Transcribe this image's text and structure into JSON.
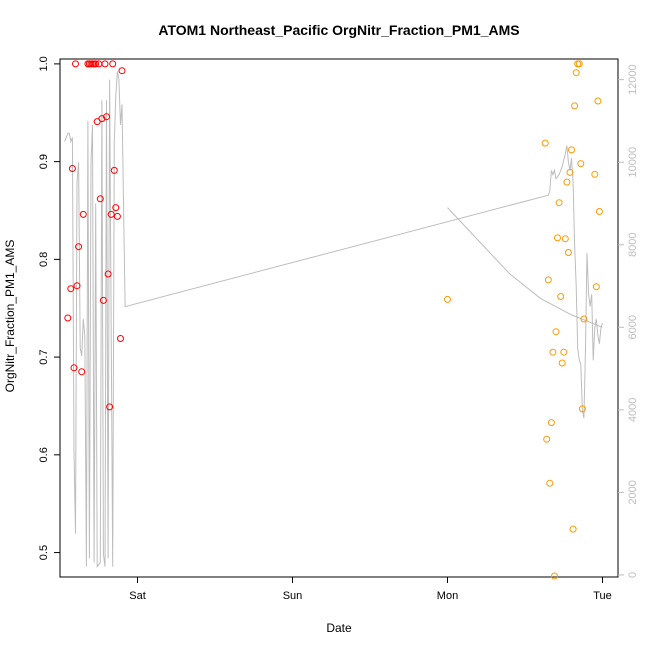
{
  "chart_data": {
    "type": "scatter",
    "title": "ATOM1 Northeast_Pacific OrgNitr_Fraction_PM1_AMS",
    "xlabel": "Date",
    "ylabel": "OrgNitr_Fraction_PM1_AMS",
    "x_ticks": [
      {
        "label": "Sat",
        "t": 1.0
      },
      {
        "label": "Sun",
        "t": 2.0
      },
      {
        "label": "Mon",
        "t": 3.0
      },
      {
        "label": "Tue",
        "t": 4.0
      }
    ],
    "xlim": [
      0.5,
      4.1
    ],
    "ylim": [
      0.475,
      1.005
    ],
    "y_ticks": [
      0.5,
      0.6,
      0.7,
      0.8,
      0.9,
      1.0
    ],
    "y_tick_labels": [
      "0.5",
      "0.6",
      "0.7",
      "0.8",
      "0.9",
      "1.0"
    ],
    "y2lim": [
      -50,
      12500
    ],
    "y2_ticks": [
      0,
      2000,
      4000,
      6000,
      8000,
      10000,
      12000
    ],
    "y2_tick_labels": [
      "0",
      "2000",
      "4000",
      "6000",
      "8000",
      "10000",
      "12000"
    ],
    "grid": false,
    "colors": {
      "series1": "#ff0000",
      "series2": "#ff9900",
      "altitude": "#bdbdbd",
      "axis": "#000000"
    },
    "series": [
      {
        "values": [
          [
            0.55,
            0.74
          ],
          [
            0.57,
            0.77
          ],
          [
            0.58,
            0.893
          ],
          [
            0.59,
            0.689
          ],
          [
            0.6,
            1.0
          ],
          [
            0.61,
            0.773
          ],
          [
            0.62,
            0.813
          ],
          [
            0.64,
            0.685
          ],
          [
            0.65,
            0.846
          ],
          [
            0.68,
            1.0
          ],
          [
            0.69,
            1.0
          ],
          [
            0.7,
            1.0
          ],
          [
            0.71,
            1.0
          ],
          [
            0.72,
            1.0
          ],
          [
            0.73,
            1.0
          ],
          [
            0.74,
            0.941
          ],
          [
            0.75,
            1.0
          ],
          [
            0.76,
            0.862
          ],
          [
            0.77,
            0.944
          ],
          [
            0.78,
            0.758
          ],
          [
            0.79,
            1.0
          ],
          [
            0.8,
            0.946
          ],
          [
            0.81,
            0.785
          ],
          [
            0.82,
            0.649
          ],
          [
            0.83,
            0.846
          ],
          [
            0.84,
            1.0
          ],
          [
            0.85,
            0.891
          ],
          [
            0.86,
            0.853
          ],
          [
            0.87,
            0.844
          ],
          [
            0.89,
            0.719
          ],
          [
            0.9,
            0.993
          ]
        ]
      },
      {
        "values": [
          [
            3.0,
            0.759
          ],
          [
            3.63,
            0.919
          ],
          [
            3.64,
            0.616
          ],
          [
            3.65,
            0.779
          ],
          [
            3.66,
            0.571
          ],
          [
            3.67,
            0.633
          ],
          [
            3.68,
            0.705
          ],
          [
            3.69,
            0.476
          ],
          [
            3.7,
            0.726
          ],
          [
            3.71,
            0.822
          ],
          [
            3.72,
            0.858
          ],
          [
            3.73,
            0.762
          ],
          [
            3.74,
            0.694
          ],
          [
            3.75,
            0.705
          ],
          [
            3.76,
            0.821
          ],
          [
            3.77,
            0.879
          ],
          [
            3.78,
            0.807
          ],
          [
            3.79,
            0.889
          ],
          [
            3.8,
            0.912
          ],
          [
            3.81,
            0.524
          ],
          [
            3.82,
            0.957
          ],
          [
            3.83,
            0.991
          ],
          [
            3.84,
            1.0
          ],
          [
            3.85,
            1.0
          ],
          [
            3.86,
            0.898
          ],
          [
            3.87,
            0.647
          ],
          [
            3.88,
            0.739
          ],
          [
            3.95,
            0.887
          ],
          [
            3.96,
            0.772
          ],
          [
            3.97,
            0.962
          ],
          [
            3.98,
            0.849
          ]
        ]
      }
    ],
    "altitude_line": [
      [
        0.53,
        10500
      ],
      [
        0.55,
        10700
      ],
      [
        0.56,
        10700
      ],
      [
        0.57,
        10500
      ],
      [
        0.58,
        10600
      ],
      [
        0.59,
        3000
      ],
      [
        0.6,
        1000
      ],
      [
        0.61,
        9500
      ],
      [
        0.62,
        10000
      ],
      [
        0.63,
        5500
      ],
      [
        0.64,
        5300
      ],
      [
        0.65,
        6200
      ],
      [
        0.66,
        5800
      ],
      [
        0.67,
        200
      ],
      [
        0.68,
        11000
      ],
      [
        0.69,
        400
      ],
      [
        0.7,
        10000
      ],
      [
        0.71,
        10900
      ],
      [
        0.72,
        300
      ],
      [
        0.73,
        9000
      ],
      [
        0.74,
        200
      ],
      [
        0.76,
        300
      ],
      [
        0.77,
        11500
      ],
      [
        0.78,
        500
      ],
      [
        0.79,
        200
      ],
      [
        0.8,
        11500
      ],
      [
        0.81,
        400
      ],
      [
        0.82,
        12000
      ],
      [
        0.84,
        200
      ],
      [
        0.85,
        10500
      ],
      [
        0.86,
        11600
      ],
      [
        0.87,
        12200
      ],
      [
        0.88,
        12000
      ],
      [
        0.89,
        10900
      ],
      [
        0.9,
        11400
      ],
      [
        0.92,
        6500
      ],
      [
        3.65,
        9200
      ],
      [
        3.66,
        9300
      ],
      [
        3.67,
        9800
      ],
      [
        3.68,
        9700
      ],
      [
        3.69,
        9800
      ],
      [
        3.7,
        9600
      ],
      [
        3.72,
        9700
      ],
      [
        3.74,
        9900
      ],
      [
        3.76,
        10200
      ],
      [
        3.77,
        10400
      ],
      [
        3.78,
        10000
      ],
      [
        3.79,
        9800
      ],
      [
        3.8,
        10100
      ],
      [
        3.81,
        9500
      ],
      [
        3.82,
        8000
      ],
      [
        3.83,
        7000
      ],
      [
        3.84,
        5500
      ],
      [
        3.85,
        5200
      ],
      [
        3.86,
        5100
      ],
      [
        3.87,
        4000
      ],
      [
        3.88,
        3800
      ],
      [
        3.89,
        5500
      ],
      [
        3.9,
        7800
      ],
      [
        3.91,
        6800
      ],
      [
        3.92,
        6500
      ],
      [
        3.93,
        6800
      ],
      [
        3.94,
        5200
      ],
      [
        3.95,
        6000
      ],
      [
        3.96,
        6200
      ],
      [
        3.97,
        5800
      ],
      [
        3.98,
        5600
      ],
      [
        3.99,
        6000
      ],
      [
        4.0,
        6100
      ]
    ],
    "altitude_line2": [
      [
        3.0,
        8900
      ],
      [
        3.2,
        8100
      ],
      [
        3.4,
        7300
      ],
      [
        3.6,
        6700
      ],
      [
        3.8,
        6300
      ],
      [
        4.0,
        6000
      ]
    ]
  }
}
